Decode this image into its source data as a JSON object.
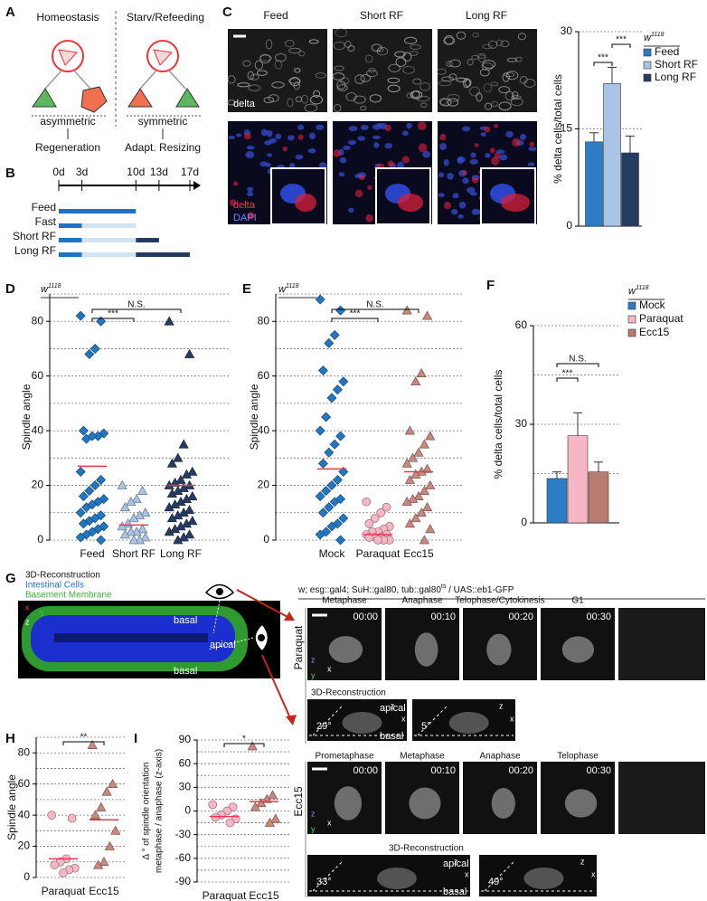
{
  "panel_letters": [
    "A",
    "B",
    "C",
    "D",
    "E",
    "F",
    "G",
    "H",
    "I"
  ],
  "panel_a": {
    "left_title": "Homeostasis",
    "right_title": "Starv/Refeeding",
    "left_mode": "asymmetric",
    "right_mode": "symmetric",
    "left_outcome": "Regeneration",
    "right_outcome": "Adapt. Resizing"
  },
  "panel_b": {
    "xlim": [
      0,
      17
    ],
    "ticks": [
      {
        "value": 0,
        "label": "0d"
      },
      {
        "value": 3,
        "label": "3d"
      },
      {
        "value": 10,
        "label": "10d"
      },
      {
        "value": 13,
        "label": "13d"
      },
      {
        "value": 17,
        "label": "17d"
      }
    ],
    "rows": [
      {
        "label": "Feed",
        "segments": [
          {
            "start": 0,
            "end": 10,
            "color": "#1f72c4"
          }
        ]
      },
      {
        "label": "Fast",
        "segments": [
          {
            "start": 0,
            "end": 3,
            "color": "#1f72c4"
          },
          {
            "start": 3,
            "end": 10,
            "color": "#d4e3f4"
          }
        ]
      },
      {
        "label": "Short RF",
        "segments": [
          {
            "start": 0,
            "end": 3,
            "color": "#1f72c4"
          },
          {
            "start": 3,
            "end": 10,
            "color": "#d4e3f4"
          },
          {
            "start": 10,
            "end": 13,
            "color": "#243a5e"
          }
        ]
      },
      {
        "label": "Long RF",
        "segments": [
          {
            "start": 0,
            "end": 3,
            "color": "#1f72c4"
          },
          {
            "start": 3,
            "end": 10,
            "color": "#d4e3f4"
          },
          {
            "start": 10,
            "end": 17,
            "color": "#243a5e"
          }
        ]
      }
    ]
  },
  "panel_c": {
    "columns": [
      "Feed",
      "Short RF",
      "Long RF"
    ],
    "top_label": "delta",
    "bottom_labels": [
      "delta",
      "DAPI"
    ]
  },
  "panel_g": {
    "title": "3D-Reconstruction",
    "legend": [
      "Intestinal Cells",
      "Basement Membrane"
    ],
    "tissue_labels": [
      "basal",
      "apical",
      "basal"
    ],
    "genotype": {
      "text": "w; esg::gal4; SuH::gal80, tub::gal80",
      "sup": "ts",
      "rest": " / UAS::eb1-GFP"
    },
    "axis_letters": {
      "x": "x",
      "y": "y",
      "z": "z"
    },
    "rows": [
      {
        "condition": "Paraquat",
        "phases": [
          "Metaphase",
          "Anaphase",
          "Telophase/Cytokinesis",
          "G1"
        ],
        "times": [
          "00:00",
          "00:10",
          "00:20",
          "00:30"
        ],
        "reconstruction": "3D-Reconstruction",
        "apical": "apical",
        "basal": "basal",
        "angles": [
          "29°",
          "5°"
        ]
      },
      {
        "condition": "Ecc15",
        "phases": [
          "Prometaphase",
          "Metaphase",
          "Anaphase",
          "Telophase"
        ],
        "times": [
          "00:00",
          "00:10",
          "00:20",
          "00:30"
        ],
        "reconstruction": "3D-Reconstruction",
        "apical": "apical",
        "basal": "basal",
        "angles": [
          "33°",
          "49°"
        ]
      }
    ]
  },
  "chart_data": [
    {
      "type": "bar",
      "y_label": "% delta cells/total cells",
      "legend_title": "w",
      "legend_title_sup": "1118",
      "categories": [
        "Feed",
        "Short RF",
        "Long RF"
      ],
      "values": [
        13,
        22,
        11.3
      ],
      "errors": [
        1.4,
        2.5,
        2.6
      ],
      "colors": [
        "#2c7cc6",
        "#a8c5e6",
        "#263d5f"
      ],
      "ylim": [
        0,
        30
      ],
      "yticks": [
        0,
        15,
        30
      ],
      "grid": true,
      "comparisons": [
        {
          "between": [
            "Feed",
            "Short RF"
          ],
          "label": "***"
        },
        {
          "between": [
            "Short RF",
            "Long RF"
          ],
          "label": "***"
        }
      ]
    },
    {
      "type": "strip",
      "y_label": "Spindle angle",
      "legend_title": "w",
      "legend_title_sup": "1118",
      "categories": [
        "Feed",
        "Short RF",
        "Long RF"
      ],
      "mean_color": "#e8384f",
      "groups": [
        {
          "color": "#2277c2",
          "marker": "diamond",
          "values": [
            82,
            80,
            70,
            68,
            40,
            39,
            38,
            38,
            37,
            25,
            22,
            20,
            18,
            16,
            15,
            14,
            13,
            12,
            10,
            9,
            8,
            7,
            6,
            5,
            4,
            3,
            2,
            1,
            0
          ],
          "mean": 27
        },
        {
          "color": "#a9c3e2",
          "marker": "triangle",
          "values": [
            20,
            18,
            15,
            14,
            12,
            10,
            9,
            8,
            6,
            5,
            4,
            3,
            3,
            2,
            1,
            0,
            0
          ],
          "mean": 5.5
        },
        {
          "color": "#263d5f",
          "marker": "triangle",
          "values": [
            80,
            68,
            35,
            30,
            28,
            25,
            24,
            22,
            21,
            20,
            20,
            19,
            18,
            17,
            16,
            15,
            14,
            13,
            12,
            11,
            10,
            9,
            8,
            7,
            6,
            5,
            4,
            3,
            2,
            1,
            0
          ],
          "mean": 20
        }
      ],
      "ylim": [
        0,
        90
      ],
      "yticks": [
        0,
        20,
        40,
        60,
        80
      ],
      "minor_yticks": [
        10,
        30,
        50,
        70,
        90
      ],
      "grid": true,
      "comparisons": [
        {
          "between": [
            "Feed",
            "Short RF"
          ],
          "label": "***"
        },
        {
          "between": [
            "Feed",
            "Long RF"
          ],
          "label": "N.S."
        }
      ]
    },
    {
      "type": "strip",
      "y_label": "Spindle angle",
      "legend_title": "w",
      "legend_title_sup": "1118",
      "categories": [
        "Mock",
        "Paraquat",
        "Ecc15"
      ],
      "mean_color": "#e8384f",
      "groups": [
        {
          "color": "#2277c2",
          "marker": "diamond",
          "values": [
            88,
            84,
            75,
            72,
            62,
            58,
            55,
            52,
            45,
            40,
            38,
            35,
            32,
            28,
            25,
            22,
            20,
            18,
            16,
            15,
            14,
            12,
            10,
            8,
            6,
            5,
            3,
            2,
            0
          ],
          "mean": 26
        },
        {
          "color": "#f5b7c5",
          "marker": "circle",
          "values": [
            14,
            12,
            10,
            8,
            6,
            5,
            4,
            3,
            3,
            2,
            2,
            1,
            1,
            1,
            0,
            0,
            0
          ],
          "mean": 2
        },
        {
          "color": "#c8887e",
          "marker": "triangle",
          "values": [
            84,
            82,
            61,
            58,
            40,
            38,
            35,
            32,
            30,
            28,
            26,
            25,
            24,
            22,
            20,
            18,
            16,
            15,
            14,
            12,
            10,
            8,
            6,
            4,
            0
          ],
          "mean": 25
        }
      ],
      "ylim": [
        0,
        90
      ],
      "yticks": [
        0,
        20,
        40,
        60,
        80
      ],
      "minor_yticks": [
        10,
        30,
        50,
        70,
        90
      ],
      "grid": true,
      "comparisons": [
        {
          "between": [
            "Mock",
            "Paraquat"
          ],
          "label": "***"
        },
        {
          "between": [
            "Mock",
            "Ecc15"
          ],
          "label": "N.S."
        }
      ]
    },
    {
      "type": "bar",
      "y_label": "% delta cells/total cells",
      "legend_title": "w",
      "legend_title_sup": "1118",
      "categories": [
        "Mock",
        "Paraquat",
        "Ecc15"
      ],
      "values": [
        13.5,
        26.5,
        15.5
      ],
      "errors": [
        2,
        7,
        3
      ],
      "colors": [
        "#2c7cc6",
        "#f5b7c5",
        "#b97b70"
      ],
      "ylim": [
        0,
        60
      ],
      "yticks": [
        0,
        30,
        60
      ],
      "minor_yticks": [
        15,
        45
      ],
      "grid": true,
      "comparisons": [
        {
          "between": [
            "Mock",
            "Paraquat"
          ],
          "label": "***"
        },
        {
          "between": [
            "Mock",
            "Ecc15"
          ],
          "label": "N.S."
        }
      ]
    },
    {
      "type": "strip",
      "y_label": "Spindle angle",
      "categories": [
        "Paraquat",
        "Ecc15"
      ],
      "mean_color": "#e8384f",
      "groups": [
        {
          "color": "#f5b7c5",
          "marker": "circle",
          "values": [
            40,
            38,
            12,
            10,
            8,
            6,
            5,
            3
          ],
          "mean": 12
        },
        {
          "color": "#c8887e",
          "marker": "triangle",
          "values": [
            85,
            60,
            55,
            45,
            40,
            30,
            20,
            10,
            8
          ],
          "mean": 37
        }
      ],
      "ylim": [
        0,
        90
      ],
      "yticks": [
        0,
        20,
        40,
        60,
        80
      ],
      "minor_yticks": [
        10,
        30,
        50,
        70,
        90
      ],
      "grid": true,
      "comparisons": [
        {
          "between": [
            "Paraquat",
            "Ecc15"
          ],
          "label": "**"
        }
      ]
    },
    {
      "type": "strip",
      "y_label": [
        "Δ ° of spindle orientation",
        "metaphase / anaphase (z-axis)"
      ],
      "categories": [
        "Paraquat",
        "Ecc15"
      ],
      "mean_color": "#e8384f",
      "groups": [
        {
          "color": "#f5b7c5",
          "marker": "circle",
          "values": [
            8,
            5,
            0,
            -5,
            -8,
            -10,
            -15
          ],
          "mean": -7
        },
        {
          "color": "#c8887e",
          "marker": "triangle",
          "values": [
            82,
            20,
            15,
            10,
            5,
            -10,
            -15
          ],
          "mean": 12
        }
      ],
      "ylim": [
        -90,
        90
      ],
      "yticks": [
        -90,
        -60,
        -30,
        0,
        30,
        60,
        90
      ],
      "minor_yticks": [
        -75,
        -45,
        -15,
        15,
        45,
        75
      ],
      "grid": true,
      "comparisons": [
        {
          "between": [
            "Paraquat",
            "Ecc15"
          ],
          "label": "*"
        }
      ]
    }
  ]
}
